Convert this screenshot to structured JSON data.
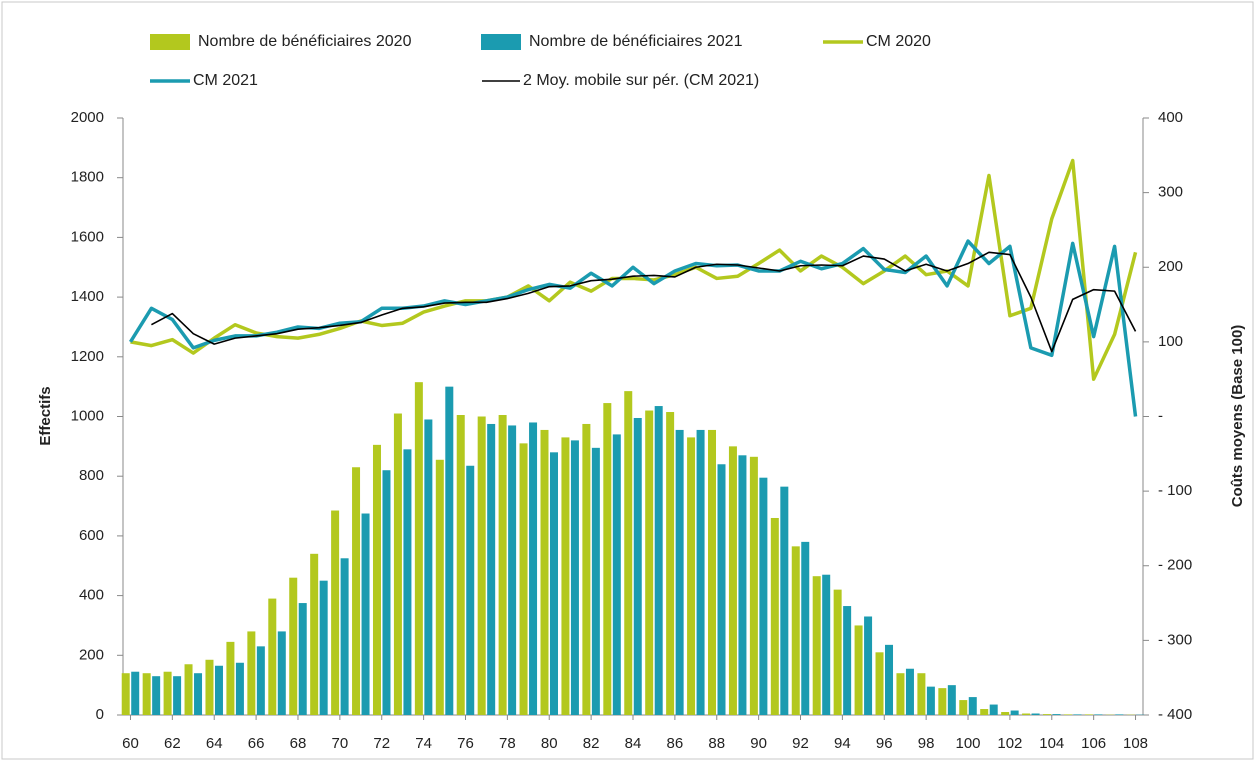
{
  "chart_data": {
    "type": "combo",
    "categories": [
      60,
      null,
      62,
      null,
      64,
      null,
      66,
      null,
      68,
      null,
      70,
      null,
      72,
      null,
      74,
      null,
      76,
      null,
      78,
      null,
      80,
      null,
      82,
      null,
      84,
      null,
      86,
      null,
      88,
      null,
      90,
      null,
      92,
      null,
      94,
      null,
      96,
      null,
      98,
      null,
      100,
      null,
      102,
      null,
      104,
      null,
      106,
      null,
      108
    ],
    "y_label": "Effectifs",
    "y2_label": "Coûts moyens (Base 100)",
    "ylim": [
      0,
      2000
    ],
    "yticks": [
      0,
      200,
      400,
      600,
      800,
      1000,
      1200,
      1400,
      1600,
      1800,
      2000
    ],
    "y2lim": [
      -400,
      400
    ],
    "y2ticks": [
      {
        "value": -400,
        "label": "- 400"
      },
      {
        "value": -300,
        "label": "- 300"
      },
      {
        "value": -200,
        "label": "- 200"
      },
      {
        "value": -100,
        "label": "- 100"
      },
      {
        "value": 0,
        "label": "-"
      },
      100,
      200,
      300,
      400
    ],
    "series": [
      {
        "name": "Nombre de bénéficiaires 2020",
        "type": "bar",
        "color": "#b3c81e",
        "values": [
          140,
          140,
          145,
          170,
          185,
          245,
          280,
          390,
          460,
          540,
          685,
          830,
          905,
          1010,
          1115,
          855,
          1005,
          1000,
          1005,
          910,
          955,
          930,
          975,
          1045,
          1085,
          1020,
          1015,
          930,
          955,
          900,
          865,
          660,
          565,
          465,
          420,
          300,
          210,
          140,
          140,
          90,
          50,
          20,
          10,
          5,
          3,
          2,
          2,
          1,
          1
        ]
      },
      {
        "name": "Nombre de bénéficiaires 2021",
        "type": "bar",
        "color": "#1b9bb0",
        "values": [
          145,
          130,
          130,
          140,
          165,
          175,
          230,
          280,
          375,
          450,
          525,
          675,
          820,
          890,
          990,
          1100,
          835,
          975,
          970,
          980,
          880,
          920,
          895,
          940,
          995,
          1035,
          955,
          955,
          840,
          870,
          795,
          765,
          580,
          470,
          365,
          330,
          235,
          155,
          95,
          100,
          60,
          35,
          15,
          5,
          3,
          2,
          2,
          2,
          1
        ]
      },
      {
        "name": "CM 2020",
        "type": "line",
        "axis": "y2",
        "color": "#b3c81e",
        "values": [
          100,
          95,
          103,
          85,
          105,
          123,
          112,
          107,
          105,
          110,
          118,
          128,
          122,
          125,
          140,
          148,
          155,
          155,
          160,
          175,
          155,
          180,
          168,
          185,
          185,
          183,
          190,
          200,
          185,
          188,
          205,
          223,
          195,
          215,
          200,
          178,
          195,
          215,
          190,
          195,
          175,
          323,
          135,
          145,
          265,
          343,
          50,
          110,
          220
        ]
      },
      {
        "name": "CM  2021",
        "type": "line",
        "axis": "y2",
        "color": "#1b9bb0",
        "values": [
          100,
          145,
          130,
          92,
          102,
          108,
          108,
          113,
          120,
          118,
          125,
          127,
          145,
          145,
          148,
          155,
          150,
          155,
          160,
          170,
          177,
          172,
          192,
          175,
          200,
          178,
          195,
          205,
          202,
          203,
          195,
          195,
          208,
          198,
          205,
          225,
          197,
          193,
          215,
          175,
          235,
          205,
          228,
          92,
          82,
          232,
          107,
          228,
          0
        ]
      },
      {
        "name": "2 Moy. mobile sur pér. (CM  2021)",
        "type": "line",
        "axis": "y2",
        "color": "#000000",
        "values": [
          null,
          123,
          138,
          111,
          97,
          105,
          108,
          111,
          117,
          119,
          122,
          126,
          136,
          145,
          147,
          152,
          153,
          153,
          158,
          165,
          174,
          175,
          182,
          184,
          188,
          189,
          187,
          200,
          204,
          203,
          199,
          195,
          202,
          203,
          202,
          215,
          211,
          195,
          204,
          195,
          205,
          220,
          217,
          160,
          87,
          157,
          170,
          168,
          114
        ]
      }
    ]
  }
}
